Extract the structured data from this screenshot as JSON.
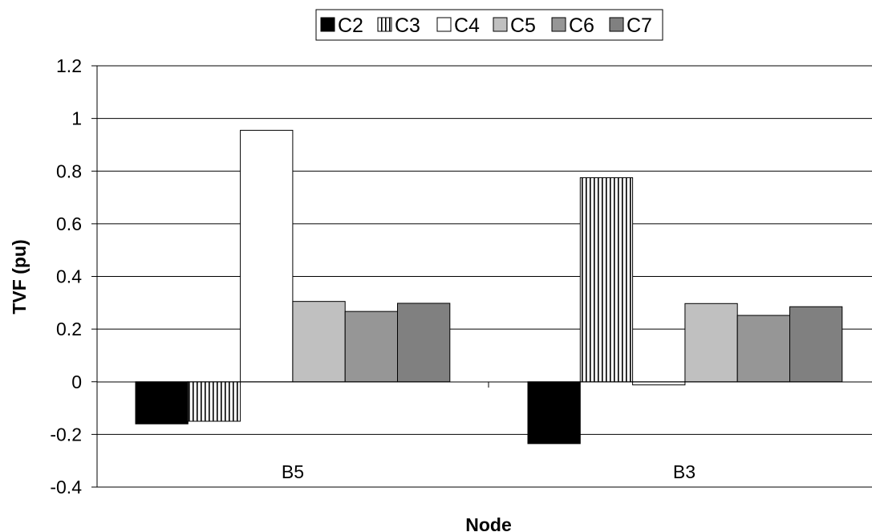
{
  "chart_data": {
    "type": "bar",
    "title": "",
    "xlabel": "Node",
    "ylabel": "TVF (pu)",
    "categories": [
      "B5",
      "B3"
    ],
    "ylim": [
      -0.4,
      1.2
    ],
    "yticks": [
      "-0.4",
      "-0.2",
      "0",
      "0.2",
      "0.4",
      "0.6",
      "0.8",
      "1",
      "1.2"
    ],
    "grid": true,
    "legend_position": "top-center",
    "series": [
      {
        "name": "C2",
        "values": [
          -0.16,
          -0.235
        ],
        "fill": "#000000",
        "pattern": "solid"
      },
      {
        "name": "C3",
        "values": [
          -0.15,
          0.775
        ],
        "fill": "#ffffff",
        "pattern": "vertical-stripes"
      },
      {
        "name": "C4",
        "values": [
          0.955,
          -0.012
        ],
        "fill": "#ffffff",
        "pattern": "solid"
      },
      {
        "name": "C5",
        "values": [
          0.305,
          0.297
        ],
        "fill": "#c0c0c0",
        "pattern": "solid"
      },
      {
        "name": "C6",
        "values": [
          0.267,
          0.252
        ],
        "fill": "#969696",
        "pattern": "solid"
      },
      {
        "name": "C7",
        "values": [
          0.298,
          0.285
        ],
        "fill": "#808080",
        "pattern": "solid"
      }
    ]
  }
}
